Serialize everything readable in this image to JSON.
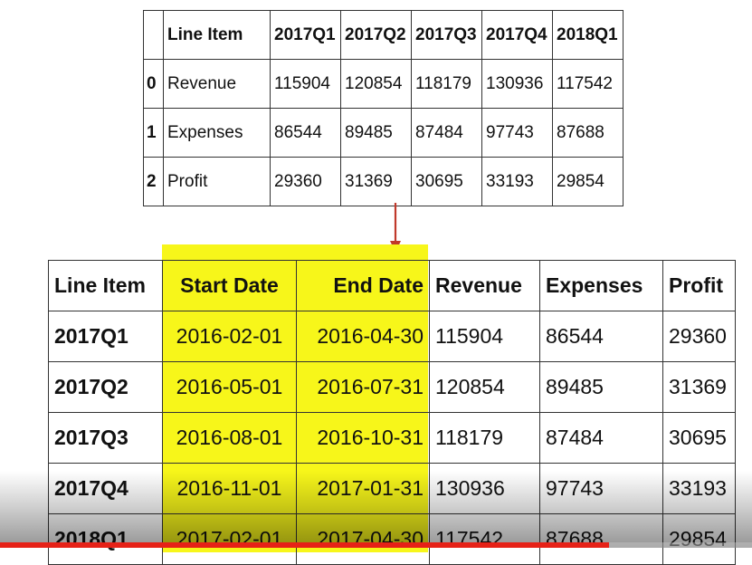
{
  "top_table": {
    "headers": [
      "",
      "Line Item",
      "2017Q1",
      "2017Q2",
      "2017Q3",
      "2017Q4",
      "2018Q1"
    ],
    "rows": [
      [
        "0",
        "Revenue",
        "115904",
        "120854",
        "118179",
        "130936",
        "117542"
      ],
      [
        "1",
        "Expenses",
        "86544",
        "89485",
        "87484",
        "97743",
        "87688"
      ],
      [
        "2",
        "Profit",
        "29360",
        "31369",
        "30695",
        "33193",
        "29854"
      ]
    ]
  },
  "bottom_table": {
    "headers": [
      "Line Item",
      "Start Date",
      "End Date",
      "Revenue",
      "Expenses",
      "Profit"
    ],
    "rows": [
      [
        "2017Q1",
        "2016-02-01",
        "2016-04-30",
        "115904",
        "86544",
        "29360"
      ],
      [
        "2017Q2",
        "2016-05-01",
        "2016-07-31",
        "120854",
        "89485",
        "31369"
      ],
      [
        "2017Q3",
        "2016-08-01",
        "2016-10-31",
        "118179",
        "87484",
        "30695"
      ],
      [
        "2017Q4",
        "2016-11-01",
        "2017-01-31",
        "130936",
        "97743",
        "33193"
      ],
      [
        "2018Q1",
        "2017-02-01",
        "2017-04-30",
        "117542",
        "87688",
        "29854"
      ]
    ]
  },
  "colors": {
    "highlight": "#f7f61a",
    "arrow": "#c0392b",
    "progress": "#e62117"
  },
  "video": {
    "progress_fraction": 0.81
  }
}
